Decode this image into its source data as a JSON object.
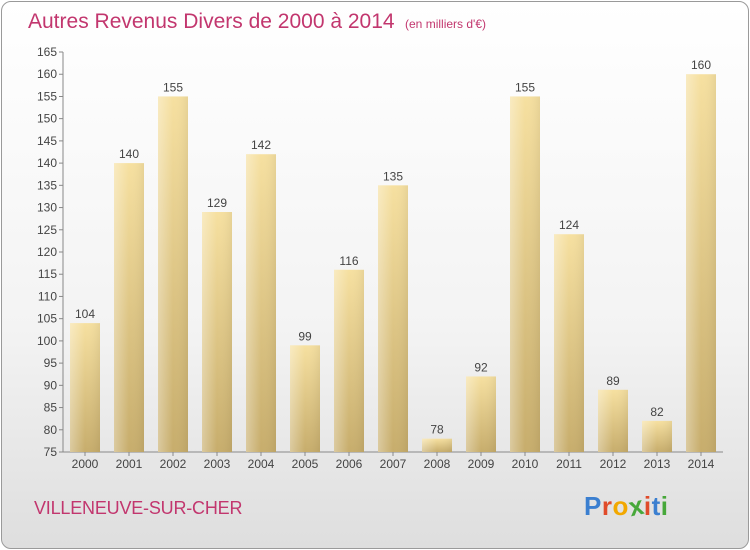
{
  "header": {
    "title": "Autres Revenus Divers de 2000 à 2014",
    "subtitle": "(en milliers d'€)"
  },
  "footer": {
    "location": "VILLENEUVE-SUR-CHER",
    "logo_letters": [
      "P",
      "r",
      "o",
      "x",
      "i",
      "t",
      "i"
    ],
    "logo_colors": [
      "#3b7fd0",
      "#e04b2a",
      "#f2a800",
      "#47a83a",
      "#e04b2a",
      "#3b7fd0",
      "#47a83a"
    ]
  },
  "colors": {
    "accent": "#c2366e",
    "bar_light": "#f6e0a0",
    "bar_dark": "#c7ad6c"
  },
  "chart_data": {
    "type": "bar",
    "categories": [
      "2000",
      "2001",
      "2002",
      "2003",
      "2004",
      "2005",
      "2006",
      "2007",
      "2008",
      "2009",
      "2010",
      "2011",
      "2012",
      "2013",
      "2014"
    ],
    "values": [
      104,
      140,
      155,
      129,
      142,
      99,
      116,
      135,
      78,
      92,
      155,
      124,
      89,
      82,
      160
    ],
    "ylim": [
      75,
      165
    ],
    "yticks": [
      75,
      80,
      85,
      90,
      95,
      100,
      105,
      110,
      115,
      120,
      125,
      130,
      135,
      140,
      145,
      150,
      155,
      160,
      165
    ],
    "data_labels": true,
    "grid": false,
    "xlabel": "",
    "ylabel": ""
  }
}
